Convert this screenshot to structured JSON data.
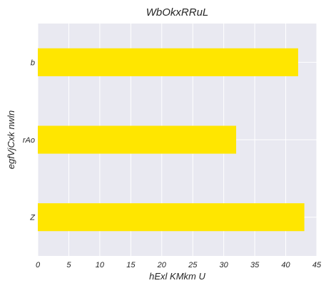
{
  "chart_data": {
    "type": "bar",
    "orientation": "horizontal",
    "title": "WbOkxRRuL",
    "xlabel": "hExl KMkm U",
    "ylabel": "egfVjCxk nwln",
    "categories": [
      "b",
      "rAo",
      "Z"
    ],
    "values": [
      42,
      32,
      43
    ],
    "xlim": [
      0,
      45
    ],
    "xticks": [
      0,
      5,
      10,
      15,
      20,
      25,
      30,
      35,
      40,
      45
    ],
    "grid": true,
    "legend": "none",
    "colors": {
      "bar": "#ffe600",
      "plot_background": "#e9e9f1",
      "grid": "#ffffff",
      "text": "#262626"
    }
  }
}
